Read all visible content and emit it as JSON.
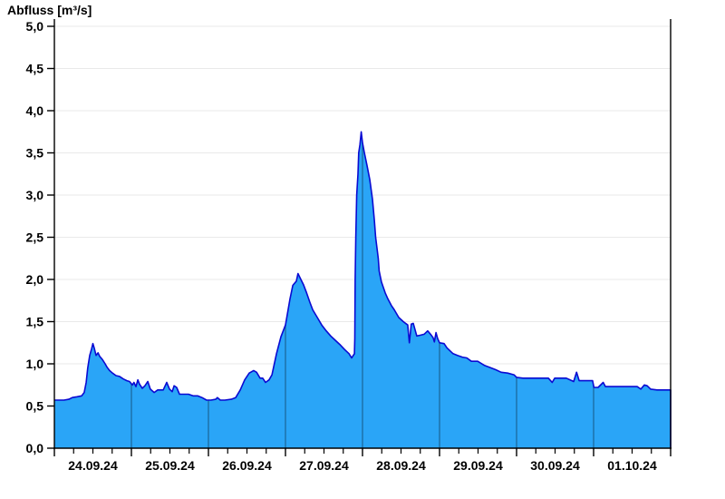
{
  "chart_data": {
    "type": "area",
    "title": "Abfluss [m³/s]",
    "series_name": "Abfluss",
    "unit": "m³/s",
    "colors": {
      "fill": "#2aa5f7",
      "outline": "#0a0ad2",
      "day_separator": "#1b6a9e",
      "grid": "#e9e9e9",
      "axis": "#000000",
      "background": "#ffffff"
    },
    "y_axis": {
      "min": 0,
      "max": 5,
      "step": 0.5,
      "tick_labels": [
        "0,0",
        "0,5",
        "1,0",
        "1,5",
        "2,0",
        "2,5",
        "3,0",
        "3,5",
        "4,0",
        "4,5",
        "5,0"
      ]
    },
    "x_axis": {
      "start": "24.09.24 00:00",
      "end": "02.10.24 00:00",
      "total_hours": 192,
      "hours_per_day": 24,
      "minor_tick_hours": 6,
      "tick_labels": [
        "24.09.24",
        "25.09.24",
        "26.09.24",
        "27.09.24",
        "28.09.24",
        "29.09.24",
        "30.09.24",
        "01.10.24"
      ]
    },
    "grid": "horizontal-only",
    "legend": "none",
    "points": [
      [
        0,
        0.57
      ],
      [
        3,
        0.57
      ],
      [
        4.5,
        0.58
      ],
      [
        5.6,
        0.6
      ],
      [
        7.1,
        0.61
      ],
      [
        8.5,
        0.62
      ],
      [
        9.3,
        0.66
      ],
      [
        9.9,
        0.78
      ],
      [
        10.4,
        0.95
      ],
      [
        11,
        1.1
      ],
      [
        11.6,
        1.18
      ],
      [
        12,
        1.24
      ],
      [
        12.4,
        1.19
      ],
      [
        13,
        1.1
      ],
      [
        13.6,
        1.13
      ],
      [
        14.1,
        1.09
      ],
      [
        15,
        1.05
      ],
      [
        15.8,
        1.0
      ],
      [
        16.4,
        0.96
      ],
      [
        17.2,
        0.92
      ],
      [
        18.1,
        0.89
      ],
      [
        19.2,
        0.86
      ],
      [
        20.3,
        0.85
      ],
      [
        21.5,
        0.82
      ],
      [
        22.6,
        0.8
      ],
      [
        23.4,
        0.79
      ],
      [
        24.3,
        0.75
      ],
      [
        24.8,
        0.78
      ],
      [
        25.4,
        0.73
      ],
      [
        26,
        0.81
      ],
      [
        26.5,
        0.76
      ],
      [
        27.4,
        0.71
      ],
      [
        28.2,
        0.74
      ],
      [
        29.1,
        0.79
      ],
      [
        29.9,
        0.7
      ],
      [
        31.1,
        0.66
      ],
      [
        32.2,
        0.69
      ],
      [
        33.9,
        0.69
      ],
      [
        35,
        0.78
      ],
      [
        35.9,
        0.7
      ],
      [
        36.7,
        0.67
      ],
      [
        37.3,
        0.74
      ],
      [
        38.1,
        0.72
      ],
      [
        39,
        0.64
      ],
      [
        40.4,
        0.64
      ],
      [
        41.8,
        0.64
      ],
      [
        43.2,
        0.62
      ],
      [
        44.6,
        0.62
      ],
      [
        46,
        0.6
      ],
      [
        47.4,
        0.57
      ],
      [
        48.8,
        0.57
      ],
      [
        50.3,
        0.58
      ],
      [
        50.8,
        0.6
      ],
      [
        51.7,
        0.57
      ],
      [
        53.1,
        0.57
      ],
      [
        55.1,
        0.58
      ],
      [
        56.5,
        0.6
      ],
      [
        57.9,
        0.69
      ],
      [
        59.3,
        0.81
      ],
      [
        60.7,
        0.89
      ],
      [
        62.1,
        0.92
      ],
      [
        63,
        0.9
      ],
      [
        64.1,
        0.83
      ],
      [
        64.9,
        0.83
      ],
      [
        65.8,
        0.78
      ],
      [
        66.9,
        0.81
      ],
      [
        67.8,
        0.87
      ],
      [
        69.2,
        1.12
      ],
      [
        70.6,
        1.32
      ],
      [
        72,
        1.46
      ],
      [
        73.4,
        1.77
      ],
      [
        74.3,
        1.93
      ],
      [
        75.4,
        1.98
      ],
      [
        75.9,
        2.07
      ],
      [
        76.8,
        2.0
      ],
      [
        77.6,
        1.94
      ],
      [
        78.5,
        1.85
      ],
      [
        79.6,
        1.73
      ],
      [
        80.5,
        1.64
      ],
      [
        81.9,
        1.55
      ],
      [
        83.3,
        1.46
      ],
      [
        84.7,
        1.39
      ],
      [
        86.1,
        1.33
      ],
      [
        87.5,
        1.28
      ],
      [
        88.9,
        1.23
      ],
      [
        90.4,
        1.17
      ],
      [
        91.8,
        1.12
      ],
      [
        92.6,
        1.07
      ],
      [
        93.5,
        1.12
      ],
      [
        93.6,
        1.3
      ],
      [
        93.7,
        2.0
      ],
      [
        93.9,
        2.5
      ],
      [
        94.2,
        3.0
      ],
      [
        94.6,
        3.25
      ],
      [
        94.8,
        3.5
      ],
      [
        95.2,
        3.6
      ],
      [
        95.6,
        3.75
      ],
      [
        96,
        3.62
      ],
      [
        96.6,
        3.5
      ],
      [
        97.4,
        3.35
      ],
      [
        98.3,
        3.18
      ],
      [
        99.1,
        2.95
      ],
      [
        99.7,
        2.7
      ],
      [
        100.1,
        2.5
      ],
      [
        100.9,
        2.25
      ],
      [
        101.2,
        2.1
      ],
      [
        101.9,
        1.97
      ],
      [
        103.1,
        1.84
      ],
      [
        103.9,
        1.77
      ],
      [
        105,
        1.69
      ],
      [
        105.9,
        1.64
      ],
      [
        107.3,
        1.55
      ],
      [
        108.7,
        1.5
      ],
      [
        110.1,
        1.46
      ],
      [
        110.6,
        1.25
      ],
      [
        111.2,
        1.47
      ],
      [
        111.8,
        1.48
      ],
      [
        112.4,
        1.4
      ],
      [
        112.9,
        1.33
      ],
      [
        114.1,
        1.34
      ],
      [
        115.2,
        1.35
      ],
      [
        116.3,
        1.39
      ],
      [
        117.2,
        1.35
      ],
      [
        118,
        1.31
      ],
      [
        118.4,
        1.26
      ],
      [
        118.9,
        1.37
      ],
      [
        119.4,
        1.3
      ],
      [
        120,
        1.25
      ],
      [
        121.4,
        1.24
      ],
      [
        122.3,
        1.19
      ],
      [
        123.4,
        1.15
      ],
      [
        124.2,
        1.12
      ],
      [
        125.6,
        1.1
      ],
      [
        127.1,
        1.08
      ],
      [
        128.5,
        1.07
      ],
      [
        129.9,
        1.03
      ],
      [
        131.9,
        1.03
      ],
      [
        134.1,
        0.98
      ],
      [
        135.5,
        0.96
      ],
      [
        137.5,
        0.93
      ],
      [
        139.2,
        0.9
      ],
      [
        141.2,
        0.89
      ],
      [
        143.2,
        0.87
      ],
      [
        144,
        0.84
      ],
      [
        146,
        0.83
      ],
      [
        149.6,
        0.83
      ],
      [
        153.9,
        0.83
      ],
      [
        155.1,
        0.78
      ],
      [
        155.9,
        0.83
      ],
      [
        159.5,
        0.83
      ],
      [
        161.8,
        0.79
      ],
      [
        162.7,
        0.9
      ],
      [
        163.5,
        0.8
      ],
      [
        166,
        0.8
      ],
      [
        167.7,
        0.8
      ],
      [
        168.1,
        0.72
      ],
      [
        169.4,
        0.72
      ],
      [
        171,
        0.78
      ],
      [
        171.7,
        0.73
      ],
      [
        175.1,
        0.73
      ],
      [
        179.3,
        0.73
      ],
      [
        181.6,
        0.73
      ],
      [
        182.7,
        0.7
      ],
      [
        183.8,
        0.75
      ],
      [
        184.7,
        0.74
      ],
      [
        185.8,
        0.7
      ],
      [
        187.8,
        0.69
      ],
      [
        190.6,
        0.69
      ],
      [
        192,
        0.69
      ]
    ]
  }
}
